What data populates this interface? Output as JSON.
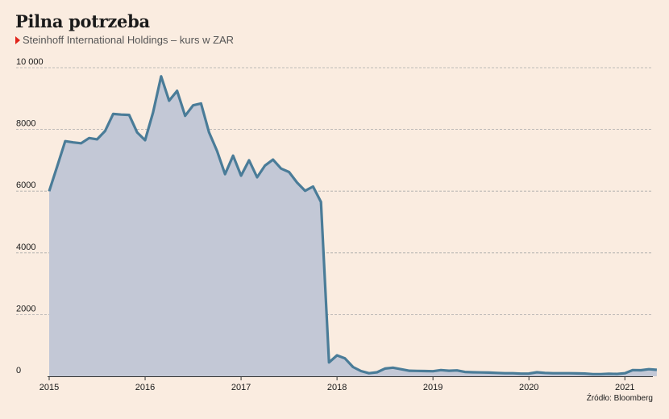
{
  "header": {
    "title": "Pilna potrzeba",
    "subtitle": "Steinhoff International Holdings – kurs w ZAR"
  },
  "footer": {
    "source": "Źródło: Bloomberg"
  },
  "colors": {
    "background": "#faece0",
    "line": "#4a7c98",
    "area": "#c3c8d6",
    "grid": "#aaaaaa",
    "marker": "#e0241b"
  },
  "chart_data": {
    "type": "area",
    "title": "Pilna potrzeba",
    "subtitle": "Steinhoff International Holdings – kurs w ZAR",
    "xlabel": "",
    "ylabel": "",
    "ylim": [
      0,
      10000
    ],
    "xlim": [
      2015.0,
      2021.25
    ],
    "grid": "horizontal dashed",
    "yticks": [
      {
        "value": 10000,
        "label": "10 000"
      },
      {
        "value": 8000,
        "label": "8000"
      },
      {
        "value": 6000,
        "label": "6000"
      },
      {
        "value": 4000,
        "label": "4000"
      },
      {
        "value": 2000,
        "label": "2000"
      },
      {
        "value": 0,
        "label": "0"
      }
    ],
    "xticks": [
      {
        "value": 2015,
        "label": "2015"
      },
      {
        "value": 2016,
        "label": "2016"
      },
      {
        "value": 2017,
        "label": "2017"
      },
      {
        "value": 2018,
        "label": "2018"
      },
      {
        "value": 2019,
        "label": "2019"
      },
      {
        "value": 2020,
        "label": "2020"
      },
      {
        "value": 2021,
        "label": "2021"
      }
    ],
    "series": [
      {
        "points": [
          {
            "x": 2015.0,
            "y": 6000
          },
          {
            "x": 2015.083,
            "y": 6800
          },
          {
            "x": 2015.167,
            "y": 7620
          },
          {
            "x": 2015.25,
            "y": 7580
          },
          {
            "x": 2015.333,
            "y": 7550
          },
          {
            "x": 2015.417,
            "y": 7720
          },
          {
            "x": 2015.5,
            "y": 7680
          },
          {
            "x": 2015.583,
            "y": 7950
          },
          {
            "x": 2015.667,
            "y": 8500
          },
          {
            "x": 2015.75,
            "y": 8480
          },
          {
            "x": 2015.833,
            "y": 8470
          },
          {
            "x": 2015.917,
            "y": 7900
          },
          {
            "x": 2016.0,
            "y": 7650
          },
          {
            "x": 2016.083,
            "y": 8550
          },
          {
            "x": 2016.167,
            "y": 9720
          },
          {
            "x": 2016.25,
            "y": 8930
          },
          {
            "x": 2016.333,
            "y": 9250
          },
          {
            "x": 2016.417,
            "y": 8440
          },
          {
            "x": 2016.5,
            "y": 8780
          },
          {
            "x": 2016.583,
            "y": 8840
          },
          {
            "x": 2016.667,
            "y": 7900
          },
          {
            "x": 2016.75,
            "y": 7300
          },
          {
            "x": 2016.833,
            "y": 6550
          },
          {
            "x": 2016.917,
            "y": 7150
          },
          {
            "x": 2017.0,
            "y": 6500
          },
          {
            "x": 2017.083,
            "y": 7000
          },
          {
            "x": 2017.167,
            "y": 6450
          },
          {
            "x": 2017.25,
            "y": 6830
          },
          {
            "x": 2017.333,
            "y": 7020
          },
          {
            "x": 2017.417,
            "y": 6730
          },
          {
            "x": 2017.5,
            "y": 6620
          },
          {
            "x": 2017.583,
            "y": 6280
          },
          {
            "x": 2017.667,
            "y": 6010
          },
          {
            "x": 2017.75,
            "y": 6150
          },
          {
            "x": 2017.833,
            "y": 5650
          },
          {
            "x": 2017.917,
            "y": 450
          },
          {
            "x": 2018.0,
            "y": 680
          },
          {
            "x": 2018.083,
            "y": 580
          },
          {
            "x": 2018.167,
            "y": 300
          },
          {
            "x": 2018.25,
            "y": 170
          },
          {
            "x": 2018.333,
            "y": 100
          },
          {
            "x": 2018.417,
            "y": 130
          },
          {
            "x": 2018.5,
            "y": 250
          },
          {
            "x": 2018.583,
            "y": 280
          },
          {
            "x": 2018.667,
            "y": 230
          },
          {
            "x": 2018.75,
            "y": 180
          },
          {
            "x": 2018.833,
            "y": 175
          },
          {
            "x": 2018.917,
            "y": 170
          },
          {
            "x": 2019.0,
            "y": 165
          },
          {
            "x": 2019.083,
            "y": 200
          },
          {
            "x": 2019.167,
            "y": 180
          },
          {
            "x": 2019.25,
            "y": 190
          },
          {
            "x": 2019.333,
            "y": 140
          },
          {
            "x": 2019.417,
            "y": 130
          },
          {
            "x": 2019.5,
            "y": 125
          },
          {
            "x": 2019.583,
            "y": 120
          },
          {
            "x": 2019.667,
            "y": 110
          },
          {
            "x": 2019.75,
            "y": 100
          },
          {
            "x": 2019.833,
            "y": 100
          },
          {
            "x": 2019.917,
            "y": 85
          },
          {
            "x": 2020.0,
            "y": 90
          },
          {
            "x": 2020.083,
            "y": 130
          },
          {
            "x": 2020.167,
            "y": 110
          },
          {
            "x": 2020.25,
            "y": 100
          },
          {
            "x": 2020.333,
            "y": 100
          },
          {
            "x": 2020.417,
            "y": 100
          },
          {
            "x": 2020.5,
            "y": 95
          },
          {
            "x": 2020.583,
            "y": 90
          },
          {
            "x": 2020.667,
            "y": 70
          },
          {
            "x": 2020.75,
            "y": 70
          },
          {
            "x": 2020.833,
            "y": 80
          },
          {
            "x": 2020.917,
            "y": 75
          },
          {
            "x": 2021.0,
            "y": 100
          },
          {
            "x": 2021.083,
            "y": 200
          },
          {
            "x": 2021.167,
            "y": 195
          },
          {
            "x": 2021.25,
            "y": 230
          },
          {
            "x": 2021.333,
            "y": 210
          }
        ]
      }
    ]
  }
}
